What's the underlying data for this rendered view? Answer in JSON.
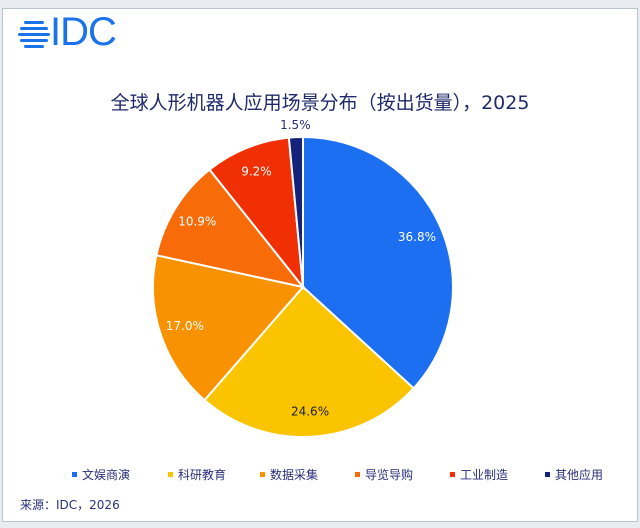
{
  "logo": {
    "text": "IDC"
  },
  "chart_data": {
    "type": "pie",
    "title": "全球人形机器人应用场景分布（按出货量），2025",
    "categories": [
      "文娱商演",
      "科研教育",
      "数据采集",
      "导览导购",
      "工业制造",
      "其他应用"
    ],
    "values": [
      36.8,
      24.6,
      17.0,
      10.9,
      9.2,
      1.5
    ],
    "labels": [
      "36.8%",
      "24.6%",
      "17.0%",
      "10.9%",
      "9.2%",
      "1.5%"
    ],
    "colors": [
      "#1b6ff0",
      "#fbc400",
      "#f99200",
      "#f76c08",
      "#f12f04",
      "#14227a"
    ],
    "start_angle": "12 o'clock, clockwise",
    "legend_position": "bottom"
  },
  "source": "来源：IDC，2026"
}
